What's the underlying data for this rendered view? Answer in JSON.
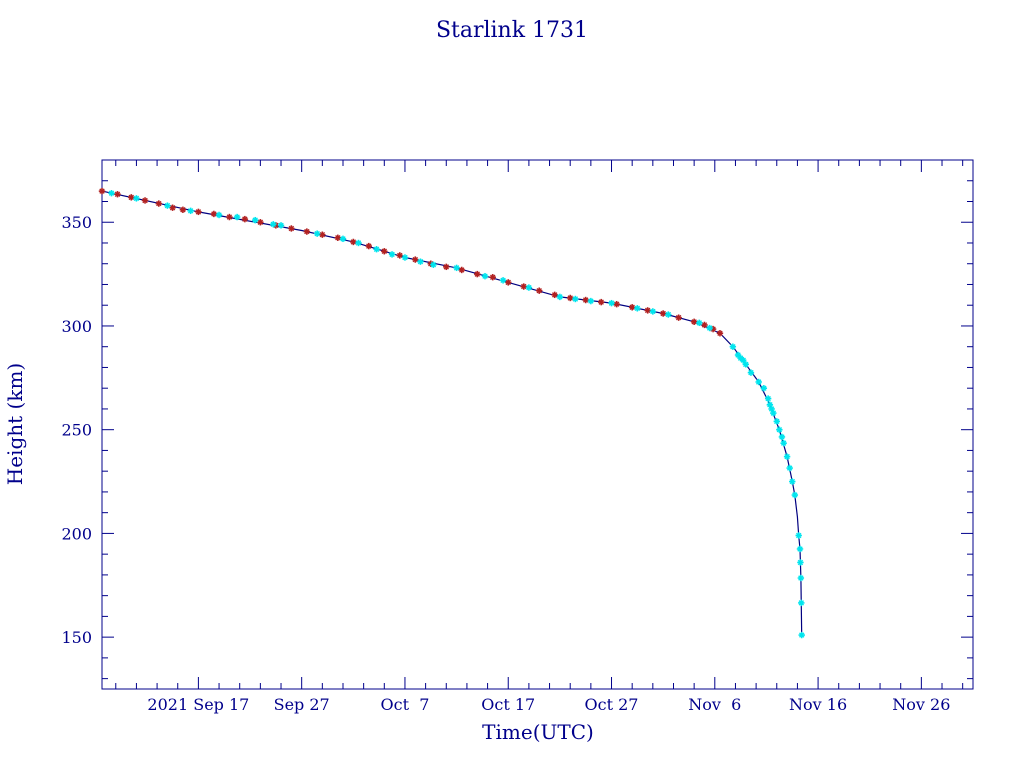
{
  "chart_data": {
    "type": "scatter",
    "title": "Starlink 1731",
    "xlabel": "Time(UTC)",
    "ylabel": "Height (km)",
    "ylim": [
      125,
      380
    ],
    "xlim": [
      "2021-09-07T16:00",
      "2021-12-01T00:00"
    ],
    "grid": false,
    "colors": {
      "axis": "#00008b",
      "line": "#000080",
      "marker_red": "#b22222",
      "marker_cyan": "#00e5ee"
    },
    "x_ticks": [
      {
        "date": "2021-09-17",
        "label": "2021 Sep 17"
      },
      {
        "date": "2021-09-27",
        "label": "Sep 27"
      },
      {
        "date": "2021-10-07",
        "label": "Oct  7"
      },
      {
        "date": "2021-10-17",
        "label": "Oct 17"
      },
      {
        "date": "2021-10-27",
        "label": "Oct 27"
      },
      {
        "date": "2021-11-06",
        "label": "Nov  6"
      },
      {
        "date": "2021-11-16",
        "label": "Nov 16"
      },
      {
        "date": "2021-11-26",
        "label": "Nov 26"
      }
    ],
    "y_ticks": [
      150,
      200,
      250,
      300,
      350
    ],
    "series": [
      {
        "marker": "red",
        "points": [
          [
            "2021-09-07T16:00",
            365
          ],
          [
            "2021-09-09T04:00",
            363.5
          ],
          [
            "2021-09-10T12:00",
            362
          ],
          [
            "2021-09-11T20:00",
            360.5
          ],
          [
            "2021-09-13T04:00",
            359
          ],
          [
            "2021-09-14T12:00",
            357
          ],
          [
            "2021-09-15T12:00",
            356
          ],
          [
            "2021-09-17T00:00",
            355
          ],
          [
            "2021-09-18T12:00",
            354
          ],
          [
            "2021-09-20T00:00",
            352.5
          ],
          [
            "2021-09-21T12:00",
            351.5
          ],
          [
            "2021-09-23T00:00",
            350
          ],
          [
            "2021-09-24T12:00",
            348.5
          ],
          [
            "2021-09-26T00:00",
            347
          ],
          [
            "2021-09-27T12:00",
            345.5
          ],
          [
            "2021-09-29T00:00",
            344
          ],
          [
            "2021-09-30T12:00",
            342.5
          ],
          [
            "2021-10-02T00:00",
            340.5
          ],
          [
            "2021-10-03T12:00",
            338.5
          ],
          [
            "2021-10-05T00:00",
            336
          ],
          [
            "2021-10-06T12:00",
            334
          ],
          [
            "2021-10-08T00:00",
            332
          ],
          [
            "2021-10-09T12:00",
            330
          ],
          [
            "2021-10-11T00:00",
            328.5
          ],
          [
            "2021-10-12T12:00",
            327
          ],
          [
            "2021-10-14T00:00",
            325
          ],
          [
            "2021-10-15T12:00",
            323.5
          ],
          [
            "2021-10-17T00:00",
            321
          ],
          [
            "2021-10-18T12:00",
            319
          ],
          [
            "2021-10-20T00:00",
            317
          ],
          [
            "2021-10-21T12:00",
            315
          ],
          [
            "2021-10-23T00:00",
            313.5
          ],
          [
            "2021-10-24T12:00",
            312.5
          ],
          [
            "2021-10-26T00:00",
            311.5
          ],
          [
            "2021-10-27T12:00",
            310.5
          ],
          [
            "2021-10-29T00:00",
            309
          ],
          [
            "2021-10-30T12:00",
            307.5
          ],
          [
            "2021-11-01T00:00",
            306
          ],
          [
            "2021-11-02T12:00",
            304
          ],
          [
            "2021-11-04T00:00",
            302
          ],
          [
            "2021-11-05T00:00",
            300.5
          ],
          [
            "2021-11-05T20:00",
            298.5
          ],
          [
            "2021-11-06T12:00",
            296.5
          ]
        ]
      },
      {
        "marker": "cyan",
        "points": [
          [
            "2021-09-08T14:00",
            364
          ],
          [
            "2021-09-11T00:00",
            361.5
          ],
          [
            "2021-09-14T00:00",
            358
          ],
          [
            "2021-09-16T06:00",
            355.5
          ],
          [
            "2021-09-19T00:00",
            353.5
          ],
          [
            "2021-09-20T18:00",
            352.5
          ],
          [
            "2021-09-22T12:00",
            351
          ],
          [
            "2021-09-24T06:00",
            349
          ],
          [
            "2021-09-25T00:00",
            348.5
          ],
          [
            "2021-09-28T12:00",
            344.5
          ],
          [
            "2021-10-01T00:00",
            342
          ],
          [
            "2021-10-02T12:00",
            340
          ],
          [
            "2021-10-04T06:00",
            337
          ],
          [
            "2021-10-05T18:00",
            334.5
          ],
          [
            "2021-10-07T00:00",
            333
          ],
          [
            "2021-10-08T12:00",
            331
          ],
          [
            "2021-10-09T18:00",
            329.5
          ],
          [
            "2021-10-12T00:00",
            328
          ],
          [
            "2021-10-14T18:00",
            324
          ],
          [
            "2021-10-16T12:00",
            322
          ],
          [
            "2021-10-19T00:00",
            318.5
          ],
          [
            "2021-10-22T00:00",
            314
          ],
          [
            "2021-10-23T12:00",
            313
          ],
          [
            "2021-10-25T00:00",
            312
          ],
          [
            "2021-10-27T00:00",
            311
          ],
          [
            "2021-10-29T12:00",
            308.5
          ],
          [
            "2021-10-31T00:00",
            307
          ],
          [
            "2021-11-01T12:00",
            305.5
          ],
          [
            "2021-11-04T12:00",
            301.5
          ],
          [
            "2021-11-05T12:00",
            299
          ],
          [
            "2021-11-07T18:00",
            290
          ],
          [
            "2021-11-08T06:00",
            286
          ],
          [
            "2021-11-08T12:00",
            284.5
          ],
          [
            "2021-11-08T18:00",
            283.5
          ],
          [
            "2021-11-09T00:00",
            281.5
          ],
          [
            "2021-11-09T12:00",
            277.5
          ],
          [
            "2021-11-10T06:00",
            273
          ],
          [
            "2021-11-10T18:00",
            270
          ],
          [
            "2021-11-11T04:00",
            265
          ],
          [
            "2021-11-11T08:00",
            262
          ],
          [
            "2021-11-11T12:00",
            260
          ],
          [
            "2021-11-11T16:00",
            258
          ],
          [
            "2021-11-12T00:00",
            254
          ],
          [
            "2021-11-12T06:00",
            250
          ],
          [
            "2021-11-12T12:00",
            246.5
          ],
          [
            "2021-11-12T16:00",
            243.5
          ],
          [
            "2021-11-13T00:00",
            237
          ],
          [
            "2021-11-13T06:00",
            231.5
          ],
          [
            "2021-11-13T12:00",
            225
          ],
          [
            "2021-11-13T18:00",
            218.5
          ],
          [
            "2021-11-14T03:00",
            199
          ],
          [
            "2021-11-14T06:00",
            192.5
          ],
          [
            "2021-11-14T07:00",
            186
          ],
          [
            "2021-11-14T08:00",
            178.5
          ],
          [
            "2021-11-14T09:00",
            166.5
          ],
          [
            "2021-11-14T10:00",
            151
          ]
        ]
      }
    ],
    "curve": [
      [
        "2021-09-07T16:00",
        365
      ],
      [
        "2021-09-17T00:00",
        355
      ],
      [
        "2021-09-27T00:00",
        346
      ],
      [
        "2021-10-02T00:00",
        340.5
      ],
      [
        "2021-10-07T00:00",
        333
      ],
      [
        "2021-10-12T00:00",
        328
      ],
      [
        "2021-10-17T00:00",
        321
      ],
      [
        "2021-10-22T00:00",
        314
      ],
      [
        "2021-10-27T00:00",
        311
      ],
      [
        "2021-11-01T00:00",
        306
      ],
      [
        "2021-11-04T00:00",
        302
      ],
      [
        "2021-11-06T12:00",
        296.5
      ],
      [
        "2021-11-07T18:00",
        290
      ],
      [
        "2021-11-09T00:00",
        281.5
      ],
      [
        "2021-11-10T06:00",
        273
      ],
      [
        "2021-11-11T06:00",
        263
      ],
      [
        "2021-11-12T06:00",
        250
      ],
      [
        "2021-11-13T00:00",
        237
      ],
      [
        "2021-11-13T12:00",
        225
      ],
      [
        "2021-11-13T18:00",
        218.5
      ],
      [
        "2021-11-14T00:00",
        208
      ],
      [
        "2021-11-14T03:00",
        199
      ],
      [
        "2021-11-14T06:00",
        192.5
      ],
      [
        "2021-11-14T08:00",
        178.5
      ],
      [
        "2021-11-14T10:00",
        151
      ]
    ]
  }
}
